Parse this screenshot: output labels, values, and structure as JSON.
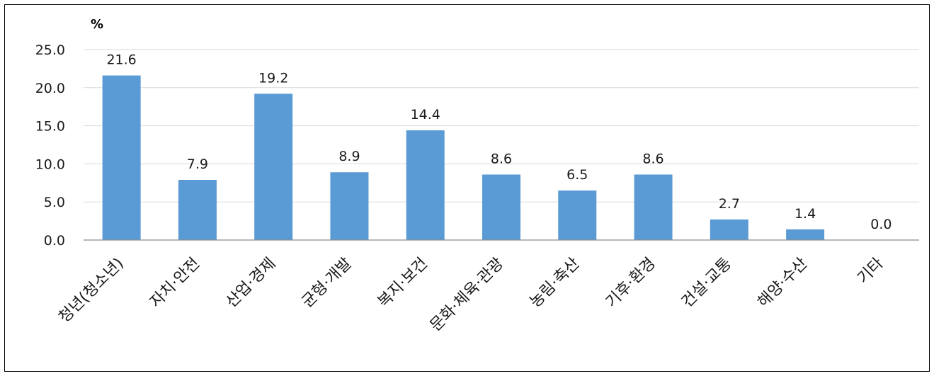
{
  "chart_data": {
    "type": "bar",
    "unit_label": "%",
    "categories": [
      "청년(청소년)",
      "자치·안전",
      "산업·경제",
      "균형·개발",
      "복지·보건",
      "문화·체육·관광",
      "농림·축산",
      "기후·환경",
      "건설·교통",
      "해양·수산",
      "기타"
    ],
    "values": [
      21.6,
      7.9,
      19.2,
      8.9,
      14.4,
      8.6,
      6.5,
      8.6,
      2.7,
      1.4,
      0.0
    ],
    "value_labels": [
      "21.6",
      "7.9",
      "19.2",
      "8.9",
      "14.4",
      "8.6",
      "6.5",
      "8.6",
      "2.7",
      "1.4",
      "0.0"
    ],
    "ylim": [
      0,
      25
    ],
    "yticks": [
      "0.0",
      "5.0",
      "10.0",
      "15.0",
      "20.0",
      "25.0"
    ],
    "grid": true,
    "bar_color": "#5b9bd5",
    "grid_color": "#d9d9d9"
  }
}
